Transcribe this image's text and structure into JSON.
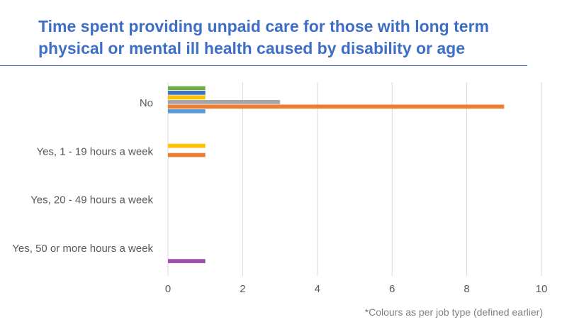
{
  "title": "Time spent providing unpaid care for those with long term physical or mental ill health caused by disability or age",
  "footnote": "*Colours as per job type (defined earlier)",
  "colors": {
    "grid": "#d9d9d9",
    "axis_text": "#595959",
    "title": "#3e6ec6"
  },
  "chart_data": {
    "type": "bar",
    "orientation": "horizontal",
    "categories": [
      "No",
      "Yes, 1 - 19 hours a week",
      "Yes, 20 - 49 hours a week",
      "Yes, 50 or more hours a week"
    ],
    "xlim": [
      0,
      10
    ],
    "xticks": [
      0,
      2,
      4,
      6,
      8,
      10
    ],
    "grid": true,
    "legend": "none",
    "series": [
      {
        "color": "#70ad47",
        "values": [
          1,
          0,
          0,
          0
        ]
      },
      {
        "color": "#4472c4",
        "values": [
          1,
          0,
          0,
          0
        ]
      },
      {
        "color": "#ffc000",
        "values": [
          1,
          1,
          0,
          0
        ]
      },
      {
        "color": "#a5a5a5",
        "values": [
          3,
          0,
          0,
          0
        ]
      },
      {
        "color": "#ed7d31",
        "values": [
          9,
          1,
          0,
          0
        ]
      },
      {
        "color": "#5b9bd5",
        "values": [
          1,
          0,
          0,
          0
        ]
      },
      {
        "color": "#9e4fae",
        "values": [
          0,
          0,
          0,
          1
        ]
      }
    ]
  }
}
